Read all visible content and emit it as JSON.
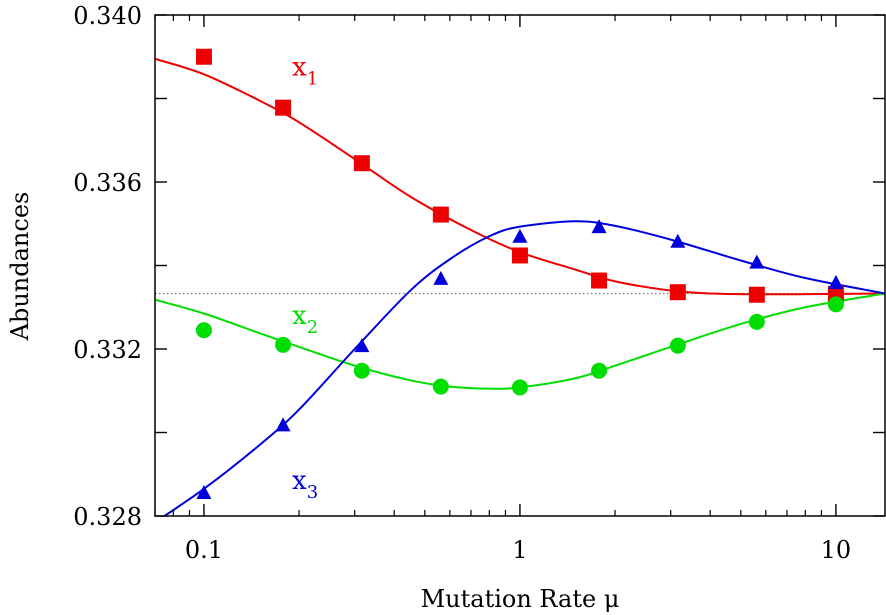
{
  "chart_data": {
    "type": "line",
    "title": "",
    "xlabel": "Mutation Rate μ",
    "ylabel": "Abundances",
    "xscale": "log",
    "xlim": [
      0.07,
      14.3
    ],
    "ylim": [
      0.328,
      0.34
    ],
    "grid": false,
    "legend": "none",
    "x_ticks": [
      {
        "value": 0.1,
        "label": "0.1"
      },
      {
        "value": 1,
        "label": "1"
      },
      {
        "value": 10,
        "label": "10"
      }
    ],
    "y_ticks": [
      {
        "value": 0.328,
        "label": "0.328"
      },
      {
        "value": 0.332,
        "label": "0.332"
      },
      {
        "value": 0.336,
        "label": "0.336"
      },
      {
        "value": 0.34,
        "label": "0.340"
      }
    ],
    "reference_line": {
      "y": 0.33333,
      "style": "dotted",
      "color": "#777777"
    },
    "series": [
      {
        "name": "x",
        "subscript": "1",
        "color": "#ee0000",
        "marker": "square",
        "label_at": {
          "x": 0.19,
          "y": 0.33855
        },
        "curve": [
          {
            "x": 0.07,
            "y": 0.33895
          },
          {
            "x": 0.1,
            "y": 0.33858
          },
          {
            "x": 0.15,
            "y": 0.33795
          },
          {
            "x": 0.2,
            "y": 0.33743
          },
          {
            "x": 0.3,
            "y": 0.33655
          },
          {
            "x": 0.45,
            "y": 0.33565
          },
          {
            "x": 0.7,
            "y": 0.33485
          },
          {
            "x": 1.0,
            "y": 0.33432
          },
          {
            "x": 1.5,
            "y": 0.3339
          },
          {
            "x": 2.0,
            "y": 0.33362
          },
          {
            "x": 3.0,
            "y": 0.3334
          },
          {
            "x": 4.0,
            "y": 0.33333
          },
          {
            "x": 6.0,
            "y": 0.33331
          },
          {
            "x": 10.0,
            "y": 0.33332
          },
          {
            "x": 14.3,
            "y": 0.33333
          }
        ],
        "points": [
          {
            "x": 0.1,
            "y": 0.339
          },
          {
            "x": 0.178,
            "y": 0.33778
          },
          {
            "x": 0.316,
            "y": 0.33645
          },
          {
            "x": 0.562,
            "y": 0.33522
          },
          {
            "x": 1.0,
            "y": 0.33424
          },
          {
            "x": 1.78,
            "y": 0.33364
          },
          {
            "x": 3.16,
            "y": 0.33336
          },
          {
            "x": 5.62,
            "y": 0.3333
          },
          {
            "x": 10.0,
            "y": 0.33332
          }
        ]
      },
      {
        "name": "x",
        "subscript": "2",
        "color": "#00dd00",
        "marker": "circle",
        "label_at": {
          "x": 0.19,
          "y": 0.3326
        },
        "curve": [
          {
            "x": 0.07,
            "y": 0.33318
          },
          {
            "x": 0.1,
            "y": 0.33285
          },
          {
            "x": 0.15,
            "y": 0.33238
          },
          {
            "x": 0.2,
            "y": 0.33205
          },
          {
            "x": 0.3,
            "y": 0.3316
          },
          {
            "x": 0.45,
            "y": 0.33125
          },
          {
            "x": 0.6,
            "y": 0.3311
          },
          {
            "x": 0.8,
            "y": 0.33105
          },
          {
            "x": 1.0,
            "y": 0.33108
          },
          {
            "x": 1.5,
            "y": 0.3313
          },
          {
            "x": 2.0,
            "y": 0.3316
          },
          {
            "x": 3.0,
            "y": 0.33205
          },
          {
            "x": 5.0,
            "y": 0.3326
          },
          {
            "x": 8.0,
            "y": 0.333
          },
          {
            "x": 14.3,
            "y": 0.33333
          }
        ],
        "points": [
          {
            "x": 0.1,
            "y": 0.33245
          },
          {
            "x": 0.178,
            "y": 0.3321
          },
          {
            "x": 0.316,
            "y": 0.33148
          },
          {
            "x": 0.562,
            "y": 0.3311
          },
          {
            "x": 1.0,
            "y": 0.33108
          },
          {
            "x": 1.78,
            "y": 0.33148
          },
          {
            "x": 3.16,
            "y": 0.33208
          },
          {
            "x": 5.62,
            "y": 0.33265
          },
          {
            "x": 10.0,
            "y": 0.33307
          }
        ]
      },
      {
        "name": "x",
        "subscript": "3",
        "color": "#0000dd",
        "marker": "triangle",
        "label_at": {
          "x": 0.19,
          "y": 0.32865
        },
        "curve": [
          {
            "x": 0.07,
            "y": 0.32785
          },
          {
            "x": 0.1,
            "y": 0.32865
          },
          {
            "x": 0.15,
            "y": 0.3297
          },
          {
            "x": 0.2,
            "y": 0.33055
          },
          {
            "x": 0.3,
            "y": 0.332
          },
          {
            "x": 0.45,
            "y": 0.3334
          },
          {
            "x": 0.6,
            "y": 0.33415
          },
          {
            "x": 0.8,
            "y": 0.3347
          },
          {
            "x": 1.0,
            "y": 0.33493
          },
          {
            "x": 1.5,
            "y": 0.33506
          },
          {
            "x": 2.0,
            "y": 0.33495
          },
          {
            "x": 3.0,
            "y": 0.33462
          },
          {
            "x": 5.0,
            "y": 0.33412
          },
          {
            "x": 8.0,
            "y": 0.3337
          },
          {
            "x": 14.3,
            "y": 0.33333
          }
        ],
        "points": [
          {
            "x": 0.1,
            "y": 0.32855
          },
          {
            "x": 0.178,
            "y": 0.33017
          },
          {
            "x": 0.316,
            "y": 0.33207
          },
          {
            "x": 0.562,
            "y": 0.33368
          },
          {
            "x": 1.0,
            "y": 0.33469
          },
          {
            "x": 1.78,
            "y": 0.33492
          },
          {
            "x": 3.16,
            "y": 0.33457
          },
          {
            "x": 5.62,
            "y": 0.33407
          },
          {
            "x": 10.0,
            "y": 0.33358
          }
        ]
      }
    ]
  }
}
